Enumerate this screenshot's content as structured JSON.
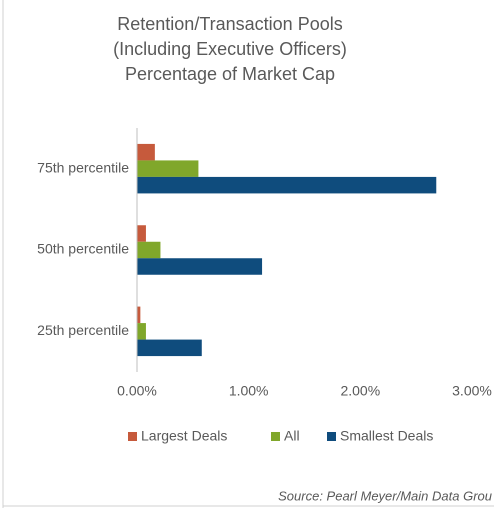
{
  "chart_data": {
    "type": "hbar",
    "title": [
      "Retention/Transaction Pools",
      "(Including Executive Officers)",
      "Percentage of Market Cap"
    ],
    "categories": [
      "75th percentile",
      "50th percentile",
      "25th percentile"
    ],
    "series": [
      {
        "name": "Largest Deals",
        "color": "#c65a3c",
        "values": [
          0.16,
          0.08,
          0.03
        ]
      },
      {
        "name": "All",
        "color": "#80a72b",
        "values": [
          0.55,
          0.21,
          0.08
        ]
      },
      {
        "name": "Smallest Deals",
        "color": "#0f4c7d",
        "values": [
          2.68,
          1.12,
          0.58
        ]
      }
    ],
    "xlim": [
      0,
      3
    ],
    "xticks": [
      {
        "value": 0,
        "label": "0.00%"
      },
      {
        "value": 1,
        "label": "1.00%"
      },
      {
        "value": 2,
        "label": "2.00%"
      },
      {
        "value": 3,
        "label": "3.00%"
      }
    ],
    "grid": false,
    "legend": "bottom",
    "source": "Source: Pearl Meyer/Main Data Grou"
  }
}
